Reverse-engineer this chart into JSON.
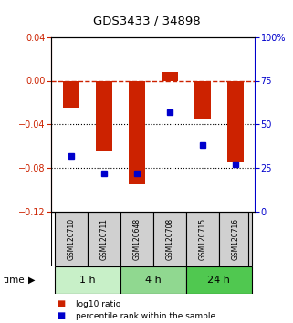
{
  "title": "GDS3433 / 34898",
  "samples": [
    "GSM120710",
    "GSM120711",
    "GSM120648",
    "GSM120708",
    "GSM120715",
    "GSM120716"
  ],
  "log10_ratio": [
    -0.025,
    -0.065,
    -0.095,
    0.008,
    -0.035,
    -0.075
  ],
  "percentile_rank": [
    32,
    22,
    22,
    57,
    38,
    27
  ],
  "time_groups": [
    {
      "label": "1 h",
      "samples": [
        0,
        1
      ],
      "color": "#c8f0c8"
    },
    {
      "label": "4 h",
      "samples": [
        2,
        3
      ],
      "color": "#90d890"
    },
    {
      "label": "24 h",
      "samples": [
        4,
        5
      ],
      "color": "#50c850"
    }
  ],
  "ylim_left": [
    -0.12,
    0.04
  ],
  "ylim_right": [
    0,
    100
  ],
  "bar_color": "#cc2200",
  "dot_color": "#0000cc",
  "ref_line_color": "#cc2200",
  "grid_color": "#000000",
  "bg_color": "#ffffff",
  "plot_bg": "#ffffff",
  "bar_width": 0.5,
  "sample_box_color": "#d0d0d0"
}
